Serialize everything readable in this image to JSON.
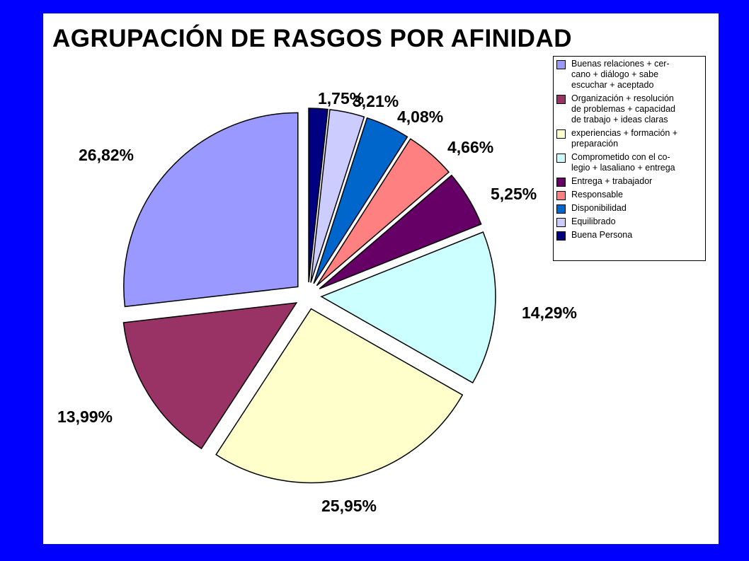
{
  "chart_data": {
    "type": "pie",
    "title": "AGRUPACIÓN DE RASGOS POR AFINIDAD",
    "legend_position": "top-right",
    "exploded": true,
    "slices": [
      {
        "label": "Buenas relaciones + cer-\ncano + diálogo + sabe\nescuchar + aceptado",
        "value": 26.82,
        "display": "26,82%",
        "color": "#9999ff"
      },
      {
        "label": "Organización + resolución\nde problemas + capacidad\nde trabajo + ideas claras",
        "value": 13.99,
        "display": "13,99%",
        "color": "#993366"
      },
      {
        "label": "experiencias + formación +\npreparación",
        "value": 25.95,
        "display": "25,95%",
        "color": "#ffffcc"
      },
      {
        "label": "Comprometido con el co-\nlegio + lasaliano + entrega",
        "value": 14.29,
        "display": "14,29%",
        "color": "#ccffff"
      },
      {
        "label": "Entrega + trabajador",
        "value": 5.25,
        "display": "5,25%",
        "color": "#660066"
      },
      {
        "label": "Responsable",
        "value": 4.66,
        "display": "4,66%",
        "color": "#ff8080"
      },
      {
        "label": "Disponibilidad",
        "value": 4.08,
        "display": "4,08%",
        "color": "#0066cc"
      },
      {
        "label": "Equilibrado",
        "value": 3.21,
        "display": "3,21%",
        "color": "#ccccff"
      },
      {
        "label": "Buena Persona",
        "value": 1.75,
        "display": "1,75%",
        "color": "#000080"
      }
    ]
  }
}
